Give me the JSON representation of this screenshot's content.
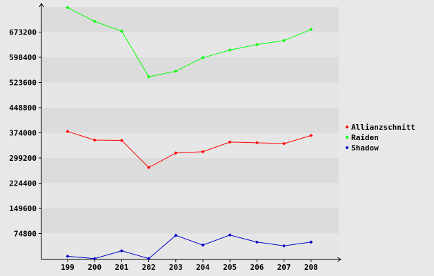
{
  "chart_data": {
    "type": "line",
    "title": "",
    "xlabel": "",
    "ylabel": "",
    "categories": [
      "199",
      "200",
      "201",
      "202",
      "203",
      "204",
      "205",
      "206",
      "207",
      "208"
    ],
    "y_ticks": [
      "74800",
      "149600",
      "224400",
      "299200",
      "374000",
      "448800",
      "523600",
      "598400",
      "673200"
    ],
    "ylim": [
      0,
      748000
    ],
    "grid": "horizontal bands",
    "legend_position": "right",
    "series": [
      {
        "name": "Allianzschnitt",
        "color": "#ff0000",
        "values": [
          378000,
          352500,
          351500,
          271000,
          314000,
          318000,
          346500,
          344500,
          342000,
          366000
        ]
      },
      {
        "name": "Raiden",
        "color": "#00ff00",
        "values": [
          746000,
          705000,
          676000,
          540500,
          557000,
          597000,
          620000,
          636000,
          648000,
          681000
        ]
      },
      {
        "name": "Shadow",
        "color": "#0000cc",
        "values": [
          7500,
          500,
          23500,
          600,
          69500,
          40500,
          70500,
          49500,
          38500,
          49500
        ]
      }
    ]
  }
}
